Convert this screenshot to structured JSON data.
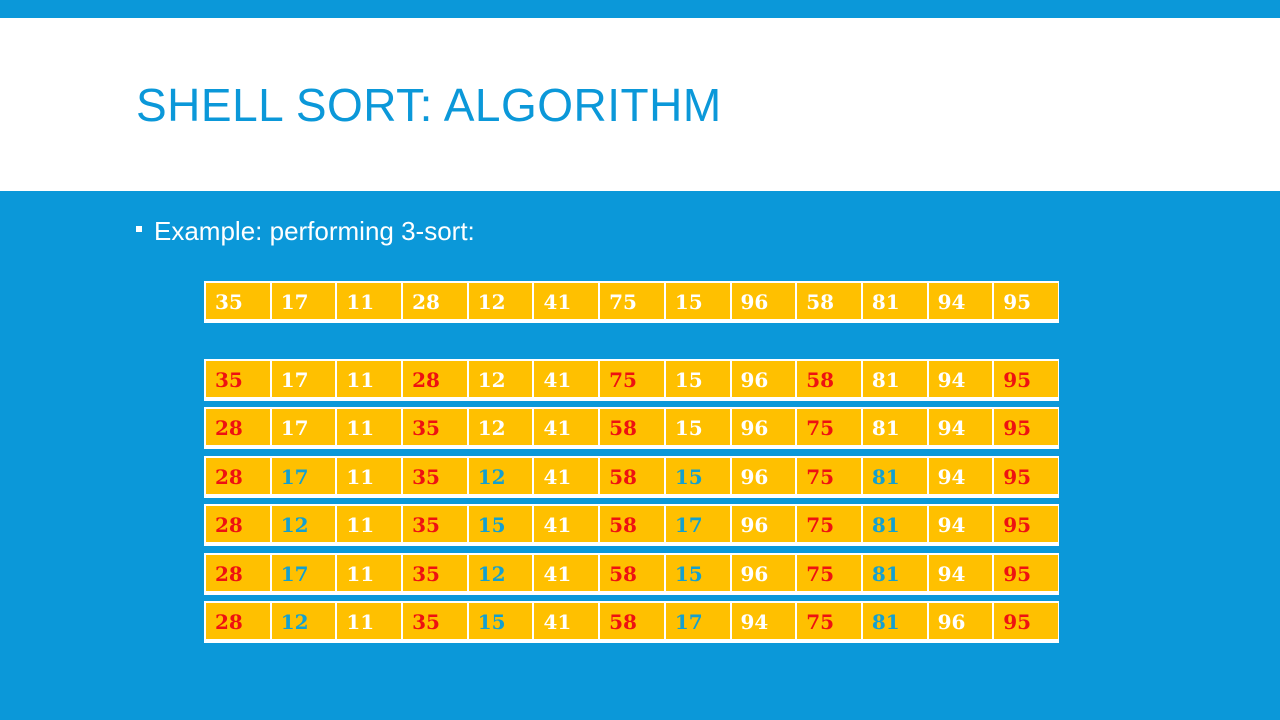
{
  "slide": {
    "title": "SHELL SORT: ALGORITHM",
    "bullet": "Example: performing 3-sort:"
  },
  "colors": {
    "background": "#0b98d9",
    "cell": "#ffc000",
    "default_text": "#ffffff",
    "red_group": "#ee1111",
    "blue_group": "#13a0d0"
  },
  "rows": [
    {
      "values": [
        "35",
        "17",
        "11",
        "28",
        "12",
        "41",
        "75",
        "15",
        "96",
        "58",
        "81",
        "94",
        "95"
      ],
      "colors": [
        "w",
        "w",
        "w",
        "w",
        "w",
        "w",
        "w",
        "w",
        "w",
        "w",
        "w",
        "w",
        "w"
      ]
    },
    {
      "values": [
        "35",
        "17",
        "11",
        "28",
        "12",
        "41",
        "75",
        "15",
        "96",
        "58",
        "81",
        "94",
        "95"
      ],
      "colors": [
        "r",
        "w",
        "w",
        "r",
        "w",
        "w",
        "r",
        "w",
        "w",
        "r",
        "w",
        "w",
        "r"
      ]
    },
    {
      "values": [
        "28",
        "17",
        "11",
        "35",
        "12",
        "41",
        "58",
        "15",
        "96",
        "75",
        "81",
        "94",
        "95"
      ],
      "colors": [
        "r",
        "w",
        "w",
        "r",
        "w",
        "w",
        "r",
        "w",
        "w",
        "r",
        "w",
        "w",
        "r"
      ]
    },
    {
      "values": [
        "28",
        "17",
        "11",
        "35",
        "12",
        "41",
        "58",
        "15",
        "96",
        "75",
        "81",
        "94",
        "95"
      ],
      "colors": [
        "r",
        "b",
        "w",
        "r",
        "b",
        "w",
        "r",
        "b",
        "w",
        "r",
        "b",
        "w",
        "r"
      ]
    },
    {
      "values": [
        "28",
        "12",
        "11",
        "35",
        "15",
        "41",
        "58",
        "17",
        "96",
        "75",
        "81",
        "94",
        "95"
      ],
      "colors": [
        "r",
        "b",
        "w",
        "r",
        "b",
        "w",
        "r",
        "b",
        "w",
        "r",
        "b",
        "w",
        "r"
      ]
    },
    {
      "values": [
        "28",
        "17",
        "11",
        "35",
        "12",
        "41",
        "58",
        "15",
        "96",
        "75",
        "81",
        "94",
        "95"
      ],
      "colors": [
        "r",
        "b",
        "w",
        "r",
        "b",
        "w",
        "r",
        "b",
        "w",
        "r",
        "b",
        "w",
        "r"
      ]
    },
    {
      "values": [
        "28",
        "12",
        "11",
        "35",
        "15",
        "41",
        "58",
        "17",
        "94",
        "75",
        "81",
        "96",
        "95"
      ],
      "colors": [
        "r",
        "b",
        "w",
        "r",
        "b",
        "w",
        "r",
        "b",
        "w",
        "r",
        "b",
        "w",
        "r"
      ]
    }
  ]
}
